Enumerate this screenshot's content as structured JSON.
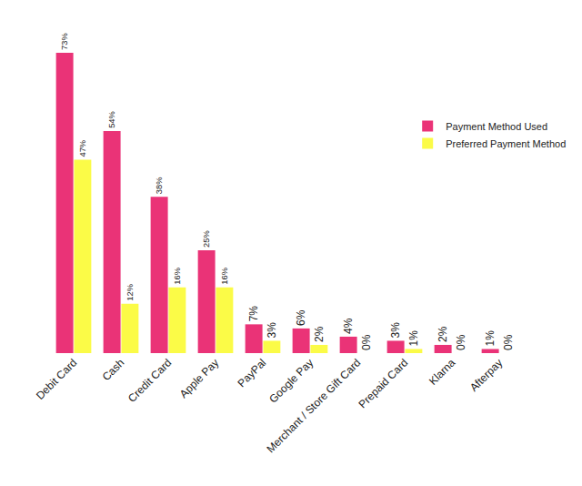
{
  "chart_data": {
    "type": "bar",
    "categories": [
      "Debit Card",
      "Cash",
      "Credit Card",
      "Apple Pay",
      "PayPal",
      "Google Pay",
      "Merchant / Store Gift Card",
      "Prepaid Card",
      "Klarna",
      "Afterpay"
    ],
    "series": [
      {
        "name": "Payment Method Used",
        "color": "#ea3377",
        "values": [
          73,
          54,
          38,
          25,
          7,
          6,
          4,
          3,
          2,
          1
        ],
        "value_labels": [
          "73%",
          "54%",
          "38%",
          "25%",
          "7%",
          "6%",
          "4%",
          "3%",
          "2%",
          "1%"
        ]
      },
      {
        "name": "Preferred Payment Method",
        "color": "#fbfb47",
        "values": [
          47,
          12,
          16,
          16,
          3,
          2,
          0,
          1,
          0,
          0
        ],
        "value_labels": [
          "47%",
          "12%",
          "16%",
          "16%",
          "3%",
          "2%",
          "0%",
          "1%",
          "0%",
          "0%"
        ]
      }
    ],
    "ylim": [
      0,
      73
    ],
    "grid": false,
    "legend": "right",
    "data_labels": true,
    "tick_labels": "x"
  }
}
